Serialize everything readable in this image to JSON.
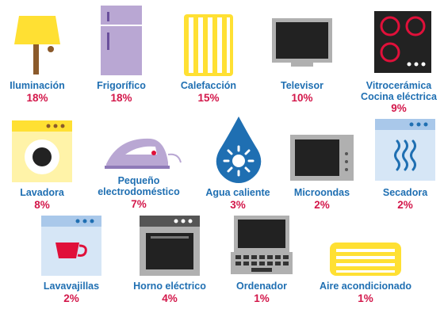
{
  "items": [
    {
      "label": "Iluminación",
      "percent": "18%",
      "icon": "lamp-icon"
    },
    {
      "label": "Frigorífico",
      "percent": "18%",
      "icon": "refrigerator-icon"
    },
    {
      "label": "Calefacción",
      "percent": "15%",
      "icon": "radiator-icon"
    },
    {
      "label": "Televisor",
      "percent": "10%",
      "icon": "television-icon"
    },
    {
      "label": "Vitrocerámica",
      "label2": "Cocina eléctrica",
      "percent": "9%",
      "icon": "cooktop-icon"
    },
    {
      "label": "Lavadora",
      "percent": "8%",
      "icon": "washing-machine-icon"
    },
    {
      "label": "Pequeño",
      "label2": "electrodoméstico",
      "percent": "7%",
      "icon": "iron-icon"
    },
    {
      "label": "Agua caliente",
      "percent": "3%",
      "icon": "hot-water-drop-icon"
    },
    {
      "label": "Microondas",
      "percent": "2%",
      "icon": "microwave-icon"
    },
    {
      "label": "Secadora",
      "percent": "2%",
      "icon": "dryer-icon"
    },
    {
      "label": "Lavavajillas",
      "percent": "2%",
      "icon": "dishwasher-icon"
    },
    {
      "label": "Horno eléctrico",
      "percent": "4%",
      "icon": "oven-icon"
    },
    {
      "label": "Ordenador",
      "percent": "1%",
      "icon": "laptop-icon"
    },
    {
      "label": "Aire acondicionado",
      "percent": "1%",
      "icon": "air-conditioner-icon"
    }
  ],
  "colors": {
    "label": "#1f6fb2",
    "percent": "#d3174a",
    "yellow": "#ffe033",
    "lilac": "#b9a7d3",
    "blue": "#1f6fb2",
    "lightblue": "#a9c8ea"
  }
}
